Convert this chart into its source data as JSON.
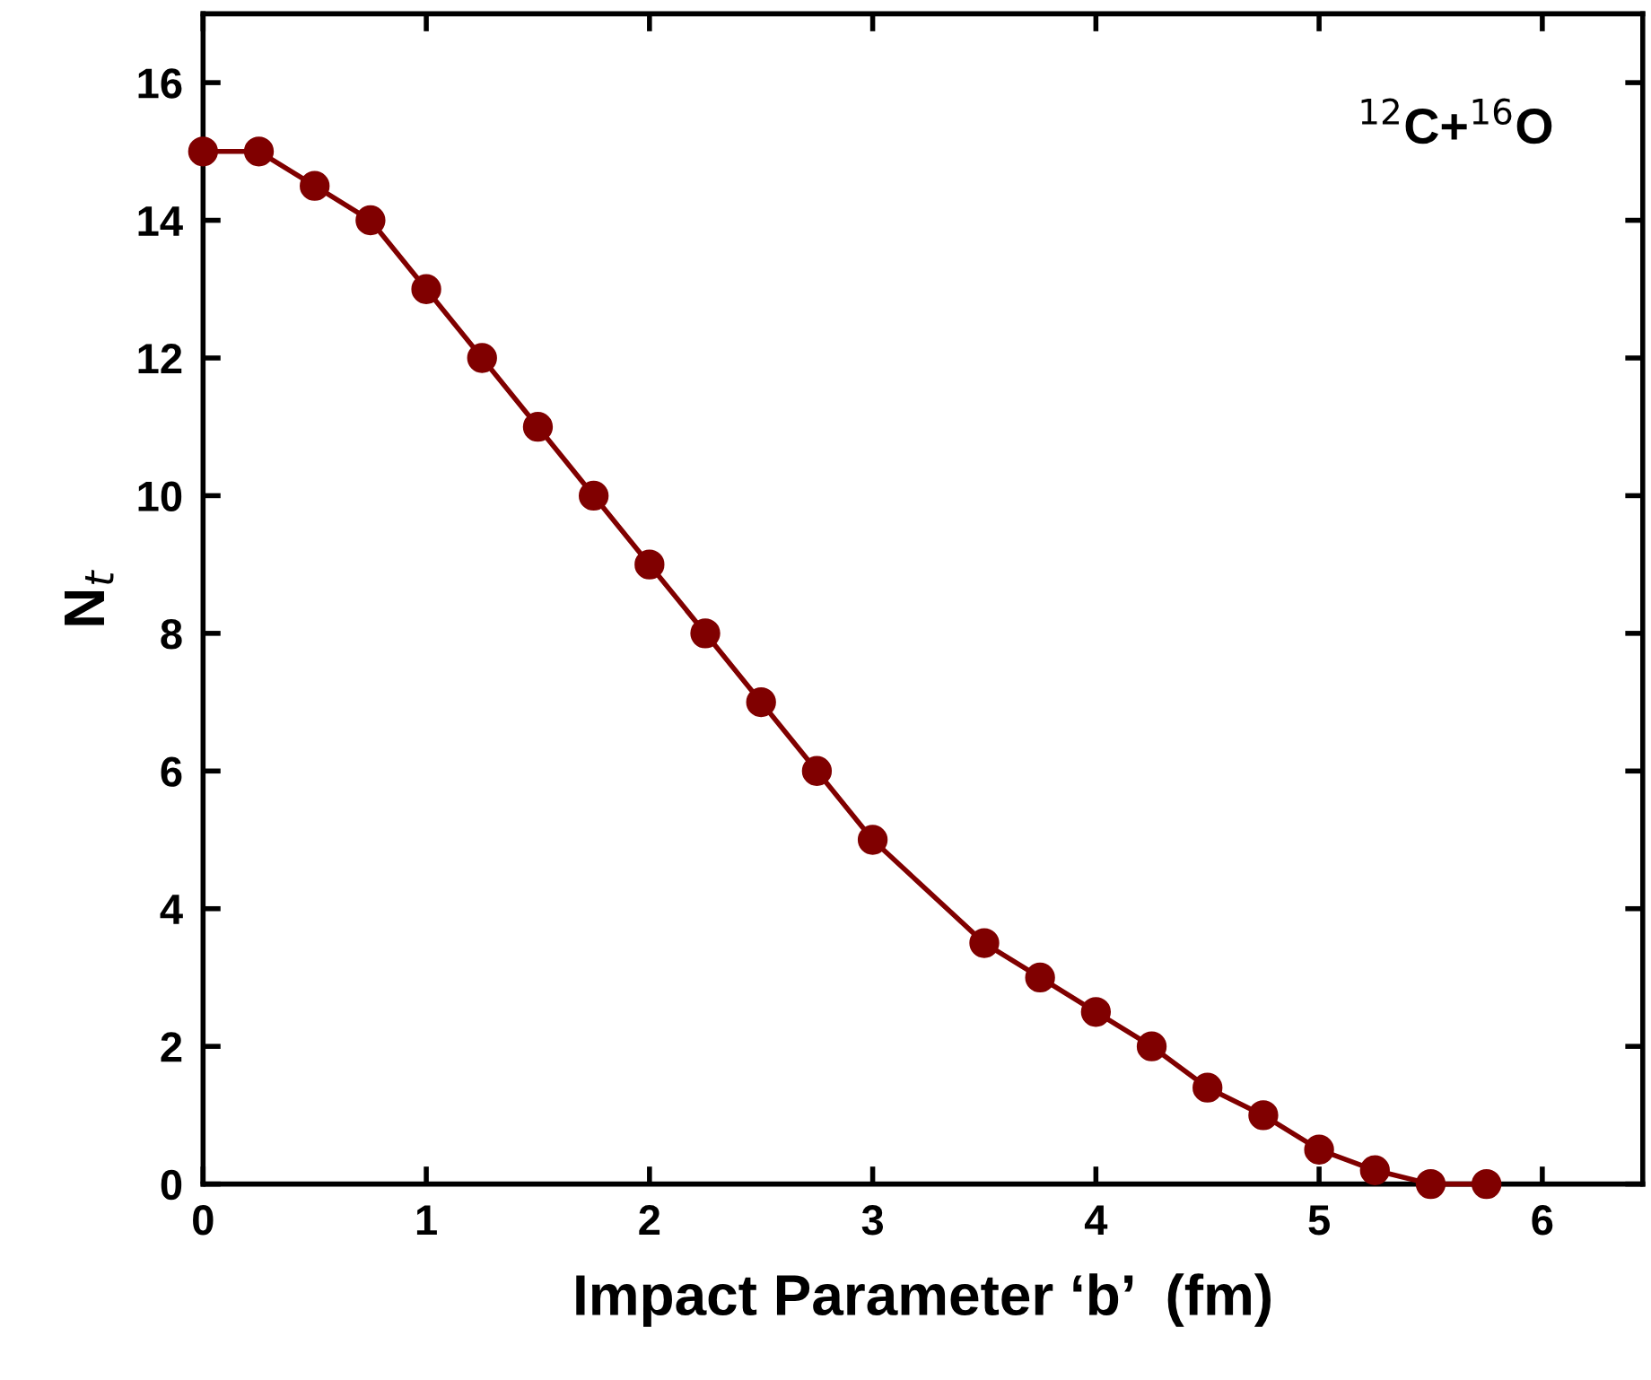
{
  "chart_data": {
    "type": "line",
    "xlabel": "Impact Parameter ‘b’  (fm)",
    "ylabel": "N$_{t}$",
    "annotations": [
      "$^{12}$C+$^{16}$O"
    ],
    "series": [
      {
        "color": "#800000",
        "x": [
          0,
          0.25,
          0.5,
          0.75,
          1,
          1.25,
          1.5,
          1.75,
          2,
          2.25,
          2.5,
          2.75,
          3,
          3.5,
          3.75,
          4,
          4.25,
          4.5,
          4.75,
          5,
          5.25,
          5.5,
          5.75
        ],
        "values": [
          15,
          15,
          14.5,
          14,
          13,
          12,
          11,
          10,
          9,
          8,
          7,
          6,
          5,
          3.5,
          3,
          2.5,
          2,
          1.4,
          1,
          0.5,
          0.2,
          0,
          0
        ]
      }
    ],
    "marker": "circle",
    "line_style": "solid",
    "grid": false,
    "xlim": [
      0,
      6.45
    ],
    "ylim": [
      0,
      17
    ],
    "xticks": [
      0,
      1,
      2,
      3,
      4,
      5,
      6
    ],
    "yticks": [
      0,
      2,
      4,
      6,
      8,
      10,
      12,
      14,
      16
    ]
  }
}
